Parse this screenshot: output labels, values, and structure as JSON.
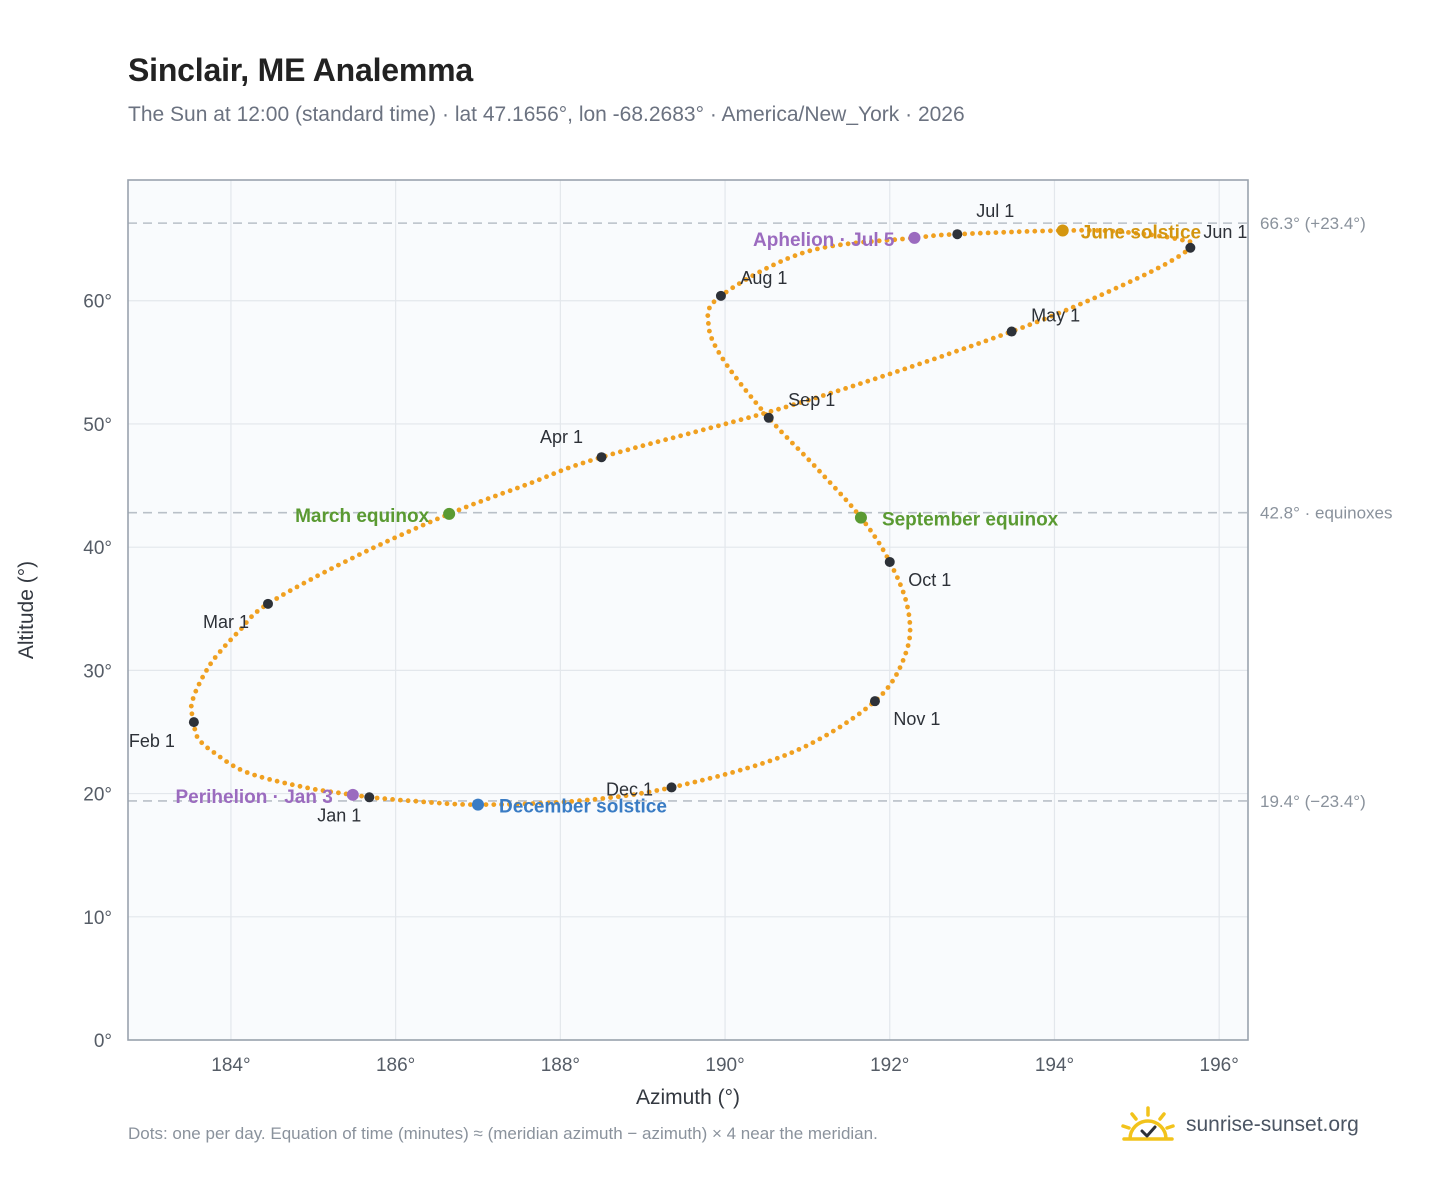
{
  "title": "Sinclair, ME Analemma",
  "subtitle": "The Sun at 12:00 (standard time) · lat 47.1656°, lon -68.2683° · America/New_York · 2026",
  "footnote": "Dots: one per day. Equation of time (minutes) ≈ (meridian azimuth − azimuth) × 4 near the meridian.",
  "brand": {
    "name": "sunrise-sunset.org",
    "icon": "sun-logo-icon"
  },
  "colors": {
    "path": "#f0a020",
    "month_marker": "#2d3138",
    "equinox": "#5a9a32",
    "june_solstice": "#d4960f",
    "december_solstice": "#3a7cc4",
    "apsis": "#9b6bbf",
    "plot_bg": "#f9fbfd",
    "grid": "#e3e7ec",
    "reference_line": "#b9c0c8"
  },
  "chart_data": {
    "type": "scatter",
    "xlabel": "Azimuth (°)",
    "ylabel": "Altitude (°)",
    "xlim": [
      182.75,
      196.35
    ],
    "ylim": [
      0,
      69.8
    ],
    "xticks": [
      184,
      186,
      188,
      190,
      192,
      194,
      196
    ],
    "yticks": [
      0,
      10,
      20,
      30,
      40,
      50,
      60
    ],
    "xtick_labels": [
      "184°",
      "186°",
      "188°",
      "190°",
      "192°",
      "194°",
      "196°"
    ],
    "ytick_labels": [
      "0°",
      "10°",
      "20°",
      "30°",
      "40°",
      "50°",
      "60°"
    ],
    "grid": true,
    "reference_lines": [
      {
        "y": 66.3,
        "label": "66.3° (+23.4°)"
      },
      {
        "y": 42.8,
        "label": "42.8° · equinoxes"
      },
      {
        "y": 19.4,
        "label": "19.4° (−23.4°)"
      }
    ],
    "path_anchors": [
      {
        "x": 185.68,
        "y": 19.7
      },
      {
        "x": 185.48,
        "y": 19.9
      },
      {
        "x": 184.9,
        "y": 20.5
      },
      {
        "x": 184.2,
        "y": 21.7
      },
      {
        "x": 183.8,
        "y": 23.3
      },
      {
        "x": 183.6,
        "y": 24.5
      },
      {
        "x": 183.55,
        "y": 25.8
      },
      {
        "x": 183.53,
        "y": 27.5
      },
      {
        "x": 183.75,
        "y": 30.5
      },
      {
        "x": 184.1,
        "y": 33.2
      },
      {
        "x": 184.45,
        "y": 35.4
      },
      {
        "x": 185.5,
        "y": 39.2
      },
      {
        "x": 186.65,
        "y": 42.7
      },
      {
        "x": 187.6,
        "y": 45.1
      },
      {
        "x": 188.5,
        "y": 47.3
      },
      {
        "x": 190.9,
        "y": 51.7
      },
      {
        "x": 193.48,
        "y": 57.5
      },
      {
        "x": 195.0,
        "y": 61.8
      },
      {
        "x": 195.65,
        "y": 64.3
      },
      {
        "x": 195.5,
        "y": 65.0
      },
      {
        "x": 194.8,
        "y": 65.6
      },
      {
        "x": 194.1,
        "y": 65.7
      },
      {
        "x": 192.82,
        "y": 65.4
      },
      {
        "x": 192.3,
        "y": 65.1
      },
      {
        "x": 191.0,
        "y": 64.0
      },
      {
        "x": 189.95,
        "y": 60.4
      },
      {
        "x": 189.8,
        "y": 58.0
      },
      {
        "x": 190.0,
        "y": 55.0
      },
      {
        "x": 190.53,
        "y": 50.5
      },
      {
        "x": 191.1,
        "y": 46.5
      },
      {
        "x": 191.65,
        "y": 42.4
      },
      {
        "x": 192.0,
        "y": 38.8
      },
      {
        "x": 192.22,
        "y": 35.0
      },
      {
        "x": 192.2,
        "y": 31.5
      },
      {
        "x": 191.82,
        "y": 27.5
      },
      {
        "x": 190.8,
        "y": 23.3
      },
      {
        "x": 189.35,
        "y": 20.5
      },
      {
        "x": 188.2,
        "y": 19.4
      },
      {
        "x": 187.0,
        "y": 19.1
      },
      {
        "x": 186.2,
        "y": 19.4
      },
      {
        "x": 185.68,
        "y": 19.7
      }
    ],
    "month_markers": [
      {
        "label": "Jan 1",
        "x": 185.68,
        "y": 19.7
      },
      {
        "label": "Feb 1",
        "x": 183.55,
        "y": 25.8
      },
      {
        "label": "Mar 1",
        "x": 184.45,
        "y": 35.4
      },
      {
        "label": "Apr 1",
        "x": 188.5,
        "y": 47.3
      },
      {
        "label": "May 1",
        "x": 193.48,
        "y": 57.5
      },
      {
        "label": "Jun 1",
        "x": 195.65,
        "y": 64.3
      },
      {
        "label": "Jul 1",
        "x": 192.82,
        "y": 65.4
      },
      {
        "label": "Aug 1",
        "x": 189.95,
        "y": 60.4
      },
      {
        "label": "Sep 1",
        "x": 190.53,
        "y": 50.5
      },
      {
        "label": "Oct 1",
        "x": 192.0,
        "y": 38.8
      },
      {
        "label": "Nov 1",
        "x": 191.82,
        "y": 27.5
      },
      {
        "label": "Dec 1",
        "x": 189.35,
        "y": 20.5
      }
    ],
    "events": [
      {
        "label": "March equinox",
        "x": 186.65,
        "y": 42.7,
        "kind": "equinox"
      },
      {
        "label": "September equinox",
        "x": 191.65,
        "y": 42.4,
        "kind": "equinox"
      },
      {
        "label": "June solstice",
        "x": 194.1,
        "y": 65.7,
        "kind": "june_solstice"
      },
      {
        "label": "December solstice",
        "x": 187.0,
        "y": 19.1,
        "kind": "december_solstice"
      },
      {
        "label": "Aphelion · Jul 5",
        "x": 192.3,
        "y": 65.1,
        "kind": "apsis"
      },
      {
        "label": "Perihelion · Jan 3",
        "x": 185.48,
        "y": 19.9,
        "kind": "apsis"
      }
    ]
  }
}
